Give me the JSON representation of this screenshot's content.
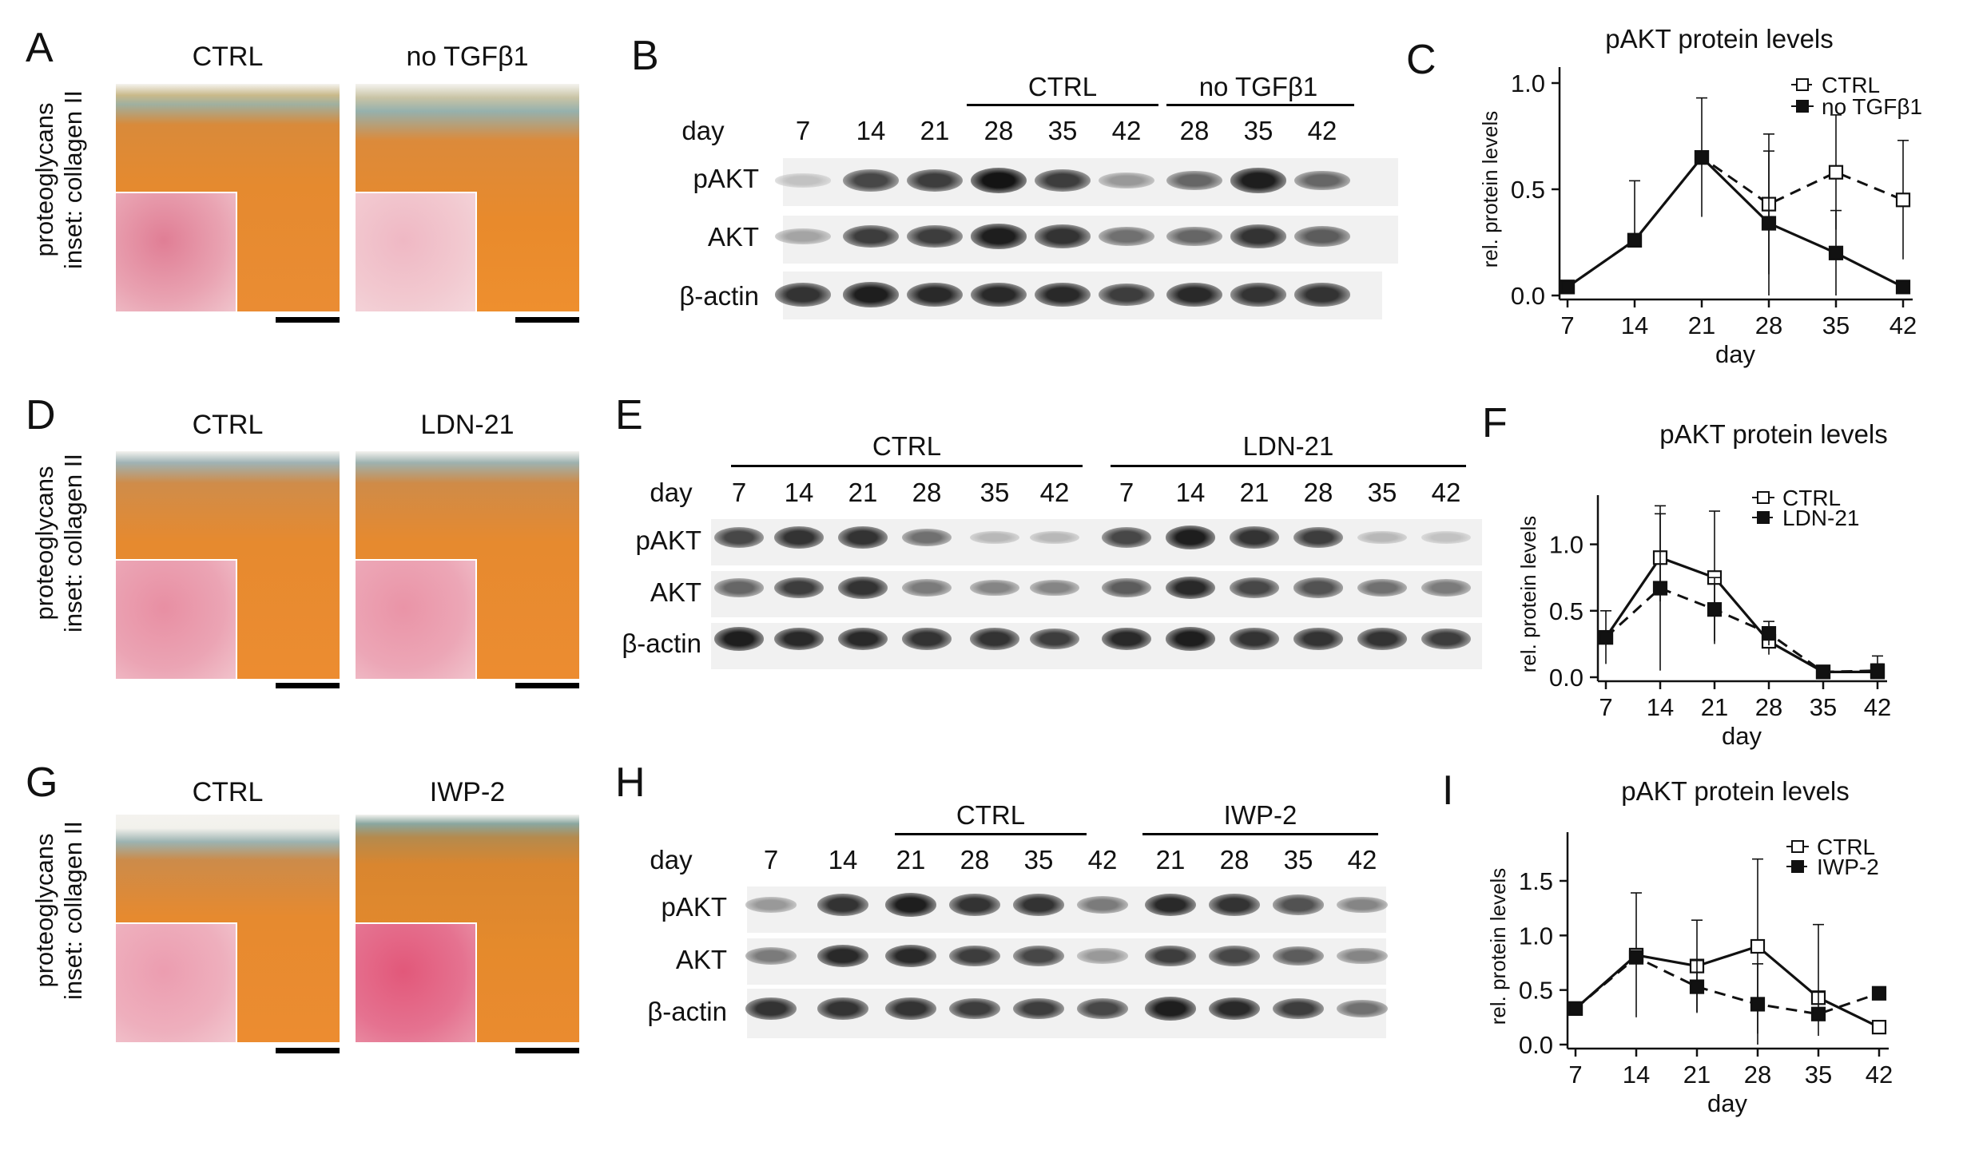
{
  "panels": {
    "A": {
      "letter": "A",
      "left_title": "CTRL",
      "right_title": "no TGFβ1",
      "ylabel_line1": "proteoglycans",
      "ylabel_line2": "inset: collagen II"
    },
    "D": {
      "letter": "D",
      "left_title": "CTRL",
      "right_title": "LDN-21",
      "ylabel_line1": "proteoglycans",
      "ylabel_line2": "inset: collagen II"
    },
    "G": {
      "letter": "G",
      "left_title": "CTRL",
      "right_title": "IWP-2",
      "ylabel_line1": "proteoglycans",
      "ylabel_line2": "inset: collagen II"
    },
    "B": {
      "letter": "B",
      "day_label": "day",
      "groups": [
        "CTRL",
        "no TGFβ1"
      ],
      "days": [
        "7",
        "14",
        "21",
        "28",
        "35",
        "42",
        "28",
        "35",
        "42"
      ],
      "rows": [
        "pAKT",
        "AKT",
        "β-actin"
      ]
    },
    "E": {
      "letter": "E",
      "day_label": "day",
      "groups": [
        "CTRL",
        "LDN-21"
      ],
      "days": [
        "7",
        "14",
        "21",
        "28",
        "35",
        "42",
        "7",
        "14",
        "21",
        "28",
        "35",
        "42"
      ],
      "rows": [
        "pAKT",
        "AKT",
        "β-actin"
      ]
    },
    "H": {
      "letter": "H",
      "day_label": "day",
      "groups": [
        "CTRL",
        "IWP-2"
      ],
      "days": [
        "7",
        "14",
        "21",
        "28",
        "35",
        "42",
        "21",
        "28",
        "35",
        "42"
      ],
      "rows": [
        "pAKT",
        "AKT",
        "β-actin"
      ]
    },
    "C": {
      "letter": "C"
    },
    "F": {
      "letter": "F"
    },
    "I": {
      "letter": "I"
    }
  },
  "colors": {
    "tissue_orange": "#e9862a",
    "tissue_teal": "#8fa9a0",
    "collagen_pink": "#e8879a",
    "band_dark": "#1a1a1a"
  },
  "band_intensity": {
    "B": {
      "pAKT": [
        0.15,
        0.75,
        0.8,
        1.0,
        0.8,
        0.35,
        0.6,
        0.95,
        0.6
      ],
      "AKT": [
        0.3,
        0.8,
        0.8,
        0.95,
        0.85,
        0.55,
        0.6,
        0.85,
        0.65
      ],
      "b_actin": [
        0.85,
        0.95,
        0.9,
        0.9,
        0.9,
        0.8,
        0.9,
        0.85,
        0.85
      ]
    },
    "E": {
      "pAKT": [
        0.75,
        0.85,
        0.85,
        0.55,
        0.2,
        0.2,
        0.75,
        0.95,
        0.85,
        0.8,
        0.2,
        0.15
      ],
      "AKT": [
        0.6,
        0.8,
        0.85,
        0.5,
        0.45,
        0.45,
        0.65,
        0.9,
        0.75,
        0.7,
        0.55,
        0.5
      ],
      "b_actin": [
        0.95,
        0.9,
        0.9,
        0.85,
        0.85,
        0.8,
        0.9,
        0.95,
        0.85,
        0.85,
        0.85,
        0.8
      ]
    },
    "H": {
      "pAKT": [
        0.35,
        0.85,
        0.95,
        0.85,
        0.85,
        0.5,
        0.9,
        0.85,
        0.7,
        0.45
      ],
      "AKT": [
        0.5,
        0.9,
        0.9,
        0.8,
        0.75,
        0.35,
        0.8,
        0.75,
        0.65,
        0.45
      ],
      "b_actin": [
        0.85,
        0.85,
        0.85,
        0.8,
        0.8,
        0.75,
        0.95,
        0.9,
        0.8,
        0.55
      ]
    }
  },
  "chart_data": [
    {
      "type": "line",
      "title": "pAKT protein levels",
      "xlabel": "day",
      "ylabel": "rel. protein levels",
      "x": [
        7,
        14,
        21,
        28,
        35,
        42
      ],
      "xticks": [
        "7",
        "14",
        "21",
        "28",
        "35",
        "42"
      ],
      "yticks": [
        "0.0",
        "0.5",
        "1.0"
      ],
      "ylim": [
        0,
        1.0
      ],
      "legend_position": "top-right",
      "series": [
        {
          "name": "CTRL",
          "marker": "open-square",
          "line": "dashed",
          "values": [
            0.04,
            0.26,
            0.65,
            0.43,
            0.58,
            0.45
          ],
          "err": [
            0,
            0.28,
            0.28,
            0.33,
            0.27,
            0.28
          ]
        },
        {
          "name": "no TGFβ1",
          "marker": "filled-square",
          "line": "solid",
          "values": [
            0.04,
            0.26,
            0.65,
            0.34,
            0.2,
            0.04
          ],
          "err": [
            0,
            0,
            0,
            0.34,
            0.2,
            0
          ]
        }
      ]
    },
    {
      "type": "line",
      "title": "pAKT protein levels",
      "xlabel": "day",
      "ylabel": "rel. protein levels",
      "x": [
        7,
        14,
        21,
        28,
        35,
        42
      ],
      "xticks": [
        "7",
        "14",
        "21",
        "28",
        "35",
        "42"
      ],
      "yticks": [
        "0.0",
        "0.5",
        "1.0"
      ],
      "ylim": [
        0,
        1.25
      ],
      "legend_position": "top-right",
      "series": [
        {
          "name": "CTRL",
          "marker": "open-square",
          "line": "solid",
          "values": [
            0.3,
            0.9,
            0.75,
            0.27,
            0.04,
            0.04
          ],
          "err": [
            0.2,
            0.33,
            0.5,
            0.1,
            0.04,
            0.12
          ]
        },
        {
          "name": "LDN-21",
          "marker": "filled-square",
          "line": "dashed",
          "values": [
            0.3,
            0.67,
            0.51,
            0.33,
            0.04,
            0.05
          ],
          "err": [
            0,
            0.62,
            0.24,
            0.09,
            0.04,
            0.05
          ]
        }
      ]
    },
    {
      "type": "line",
      "title": "pAKT protein levels",
      "xlabel": "day",
      "ylabel": "rel. protein levels",
      "x": [
        7,
        14,
        21,
        28,
        35,
        42
      ],
      "xticks": [
        "7",
        "14",
        "21",
        "28",
        "35",
        "42"
      ],
      "yticks": [
        "0.0",
        "0.5",
        "1.0",
        "1.5"
      ],
      "ylim": [
        0,
        1.8
      ],
      "legend_position": "top-right",
      "series": [
        {
          "name": "CTRL",
          "marker": "open-square",
          "line": "solid",
          "values": [
            0.33,
            0.82,
            0.72,
            0.9,
            0.43,
            0.16
          ],
          "err": [
            0,
            0.57,
            0.42,
            0.8,
            0.67,
            0
          ]
        },
        {
          "name": "IWP-2",
          "marker": "filled-square",
          "line": "dashed",
          "values": [
            0.33,
            0.8,
            0.53,
            0.37,
            0.28,
            0.47
          ],
          "err": [
            0,
            0,
            0.24,
            0.37,
            0.2,
            0
          ]
        }
      ]
    }
  ]
}
